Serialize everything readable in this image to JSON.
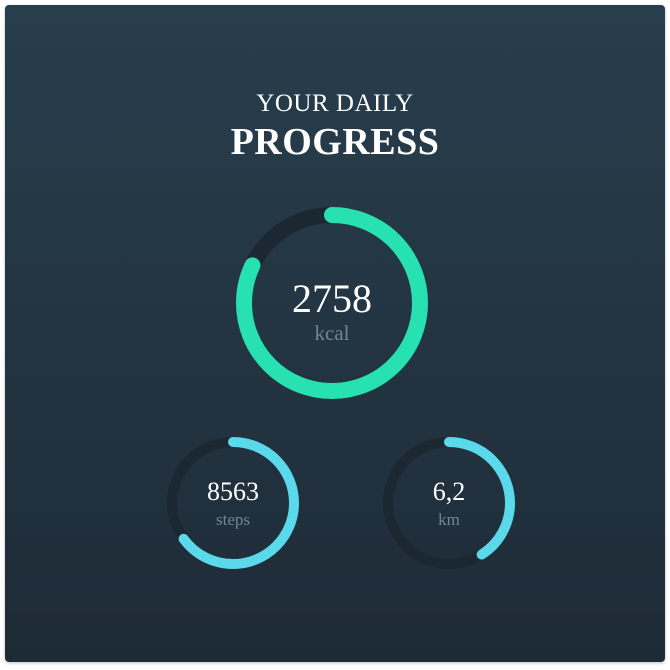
{
  "header": {
    "line1": "YOUR DAILY",
    "line2": "PROGRESS"
  },
  "colors": {
    "calories_ring": "#27e1b0",
    "steps_ring": "#5ad9ea",
    "distance_ring": "#5ad9ea",
    "track": "#1b2731"
  },
  "metrics": {
    "calories": {
      "value": "2758",
      "unit": "kcal",
      "progress": 0.82
    },
    "steps": {
      "value": "8563",
      "unit": "steps",
      "progress": 0.65
    },
    "distance": {
      "value": "6,2",
      "unit": "km",
      "progress": 0.41
    }
  }
}
